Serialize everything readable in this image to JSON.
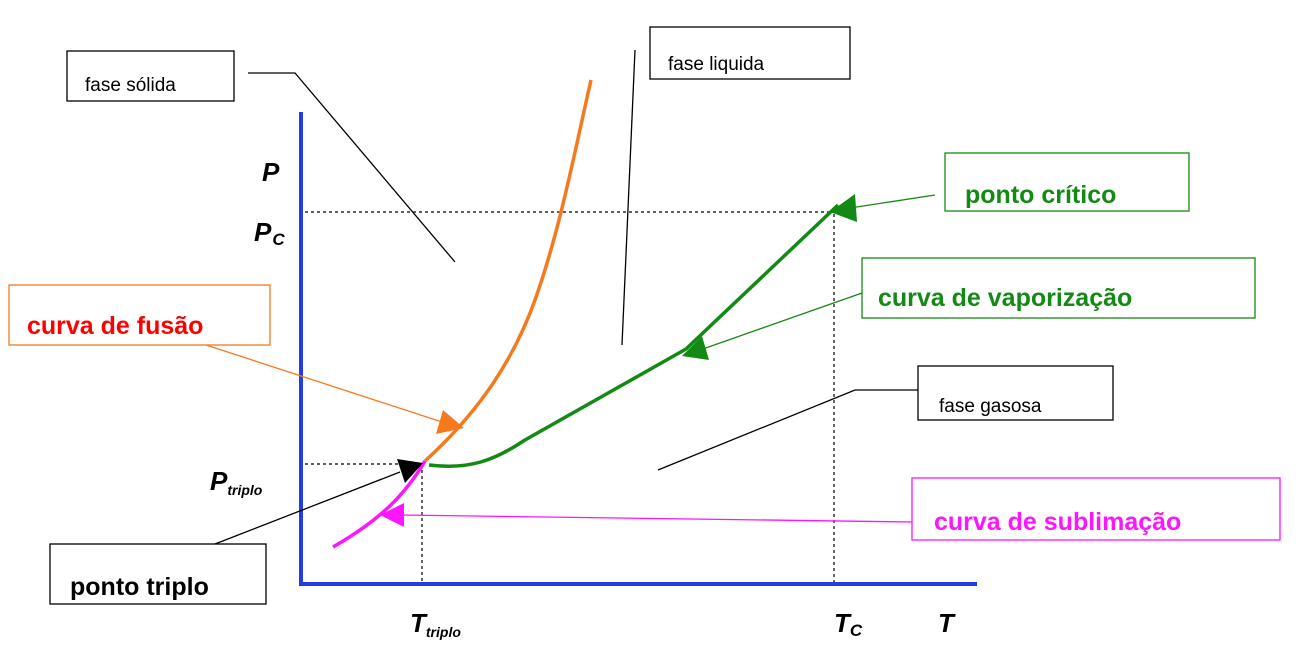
{
  "axes": {
    "p": "P",
    "pc_main": "P",
    "pc_sub": "C",
    "ptriplo_main": "P",
    "ptriplo_sub": "triplo",
    "ttriplo_main": "T",
    "ttriplo_sub": "triplo",
    "tc_main": "T",
    "tc_sub": "C",
    "t": "T"
  },
  "labels": {
    "fase_solida": "fase sólida",
    "fase_liquida": "fase liquida",
    "fase_gasosa": "fase gasosa",
    "ponto_critico": "ponto crítico",
    "curva_vaporizacao": "curva de vaporização",
    "curva_fusao": "curva de fusão",
    "curva_sublimacao": "curva de sublimação",
    "ponto_triplo": "ponto triplo"
  },
  "colors": {
    "axis": "#1f3fe0",
    "fusion": "#f57a1e",
    "vaporization": "#138a13",
    "sublimation": "#ff14ff",
    "fusion_label": "#ff0000",
    "black": "#000000"
  }
}
